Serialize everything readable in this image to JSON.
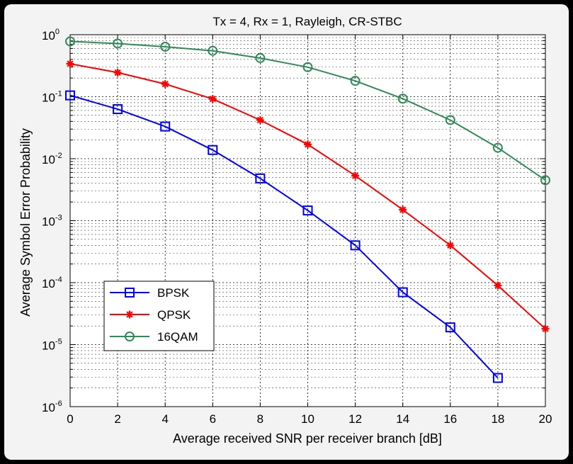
{
  "chart_data": {
    "type": "line",
    "title": "Tx = 4, Rx = 1, Rayleigh, CR-STBC",
    "xlabel": "Average received SNR per receiver branch [dB]",
    "ylabel": "Average Symbol Error Probability",
    "xlim": [
      0,
      20
    ],
    "ylim": [
      1e-06,
      1
    ],
    "yscale": "log",
    "grid": true,
    "legend_position": "bottom-left",
    "x_ticks": [
      "0",
      "2",
      "4",
      "6",
      "8",
      "10",
      "12",
      "14",
      "16",
      "18",
      "20"
    ],
    "y_ticks": [
      {
        "base": "10",
        "exp": "0"
      },
      {
        "base": "10",
        "exp": "-1"
      },
      {
        "base": "10",
        "exp": "-2"
      },
      {
        "base": "10",
        "exp": "-3"
      },
      {
        "base": "10",
        "exp": "-4"
      },
      {
        "base": "10",
        "exp": "-5"
      },
      {
        "base": "10",
        "exp": "-6"
      }
    ],
    "series": [
      {
        "name": "BPSK",
        "color": "#0000ff",
        "marker": "square",
        "x": [
          0,
          2,
          4,
          6,
          8,
          10,
          12,
          14,
          16,
          18
        ],
        "y": [
          0.105,
          0.063,
          0.033,
          0.0138,
          0.0048,
          0.00146,
          0.0004,
          7e-05,
          1.9e-05,
          2.9e-06
        ]
      },
      {
        "name": "QPSK",
        "color": "#ff0000",
        "marker": "star",
        "x": [
          0,
          2,
          4,
          6,
          8,
          10,
          12,
          14,
          16,
          18,
          20
        ],
        "y": [
          0.34,
          0.245,
          0.16,
          0.092,
          0.042,
          0.017,
          0.0053,
          0.0015,
          0.0004,
          9e-05,
          1.8e-05
        ]
      },
      {
        "name": "16QAM",
        "color": "#2e8b57",
        "marker": "circle",
        "x": [
          0,
          2,
          4,
          6,
          8,
          10,
          12,
          14,
          16,
          18,
          20
        ],
        "y": [
          0.78,
          0.72,
          0.64,
          0.55,
          0.42,
          0.3,
          0.18,
          0.093,
          0.042,
          0.015,
          0.0045
        ]
      }
    ]
  }
}
